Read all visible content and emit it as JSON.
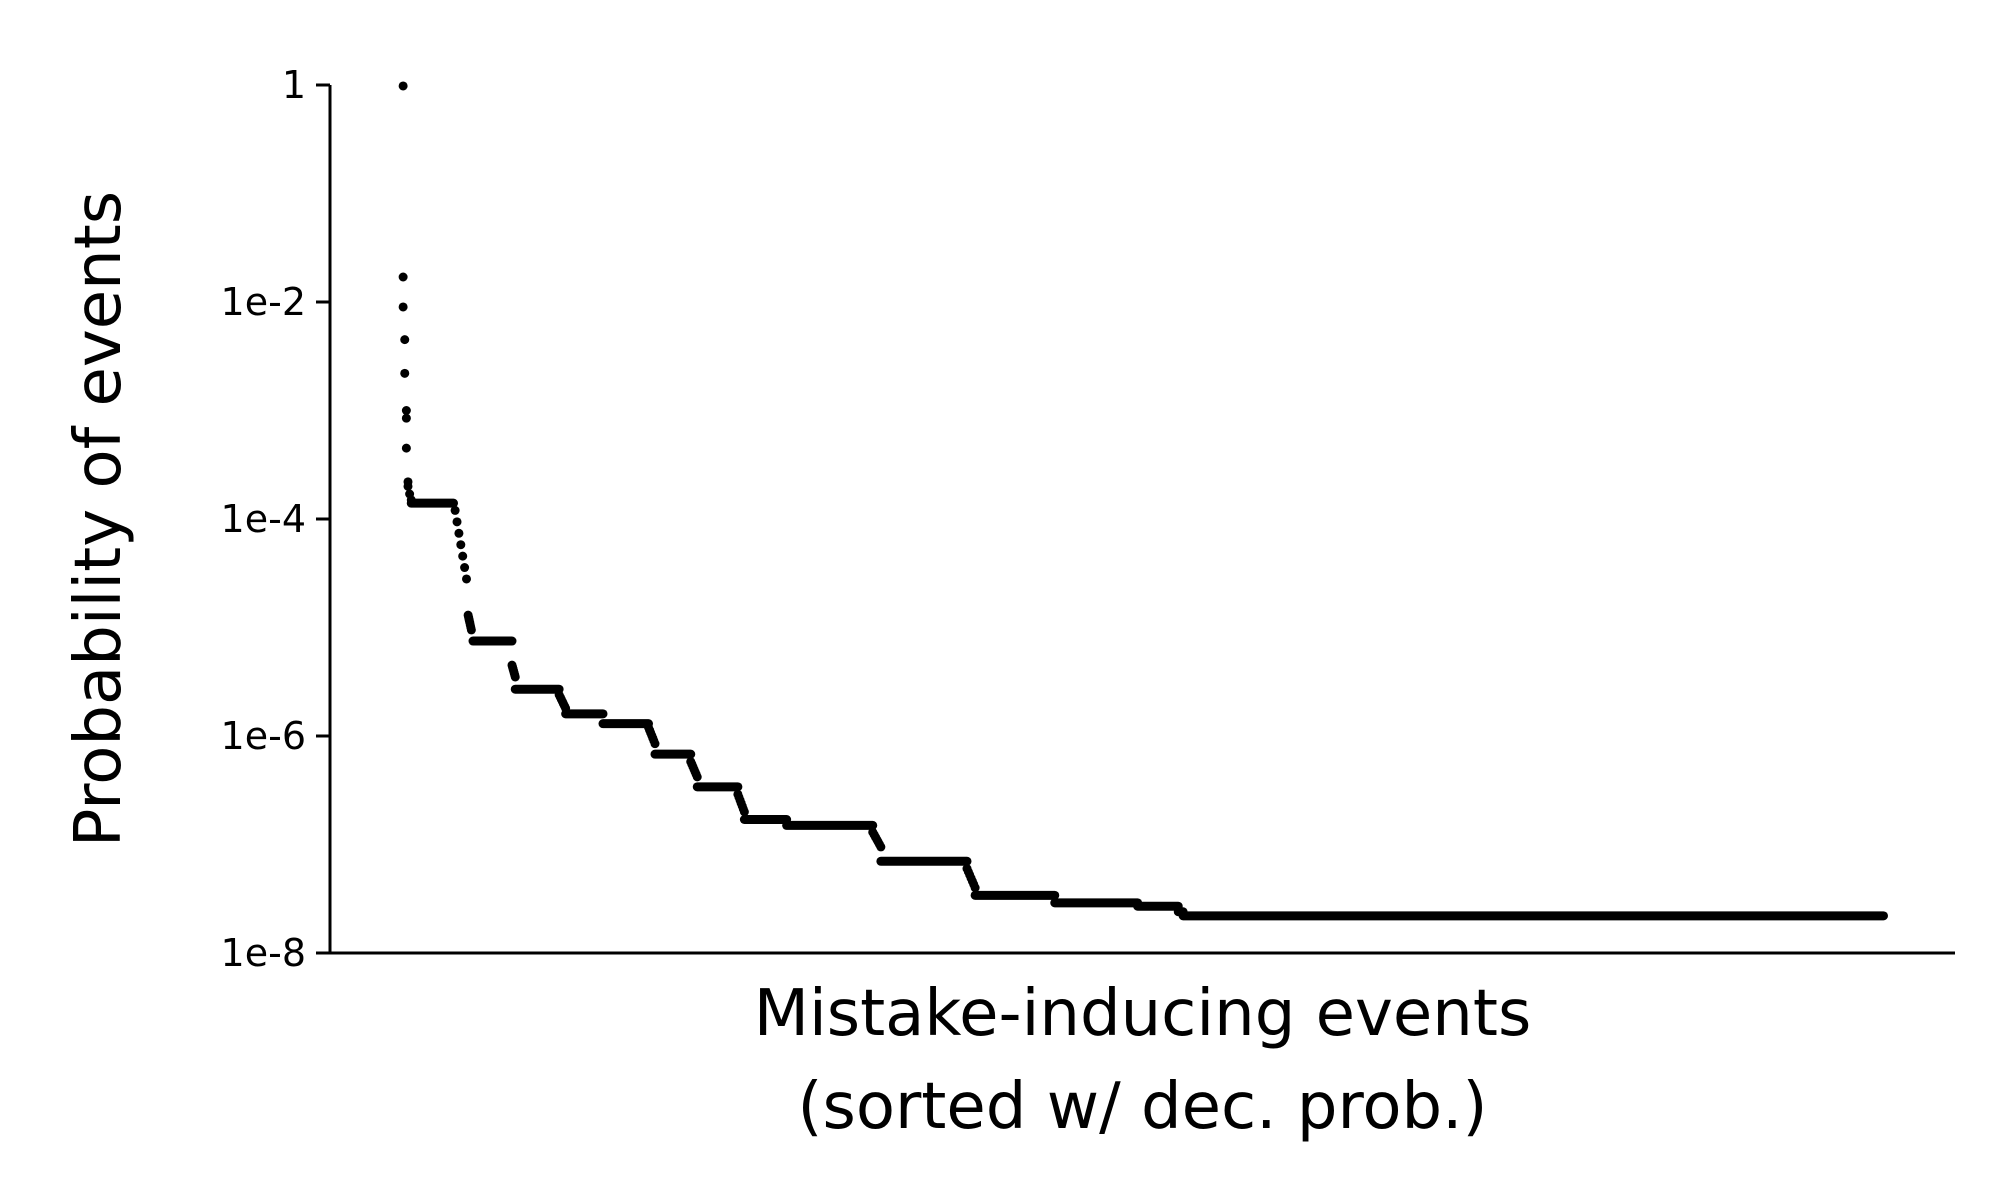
{
  "chart_data": {
    "type": "scatter",
    "title": "",
    "ylabel": "Probability of events",
    "xlabel_lines": [
      "Mistake-inducing events",
      "(sorted w/ dec. prob.)"
    ],
    "y_scale": "log",
    "ylim": [
      1e-08,
      1
    ],
    "xlim": [
      0,
      1000
    ],
    "x_ticks_shown": false,
    "y_ticks": [
      {
        "value": 1,
        "label": "1"
      },
      {
        "value": 0.01,
        "label": "1e-2"
      },
      {
        "value": 0.0001,
        "label": "1e-4"
      },
      {
        "value": 1e-06,
        "label": "1e-6"
      },
      {
        "value": 1e-08,
        "label": "1e-8"
      }
    ],
    "grid": false,
    "legend": "none",
    "marker_color": "#000000",
    "series": [
      {
        "points": [
          [
            45,
            0.98
          ],
          [
            45,
            0.017
          ],
          [
            45,
            0.009
          ],
          [
            46,
            0.0045
          ],
          [
            46,
            0.0022
          ],
          [
            47,
            0.001
          ],
          [
            47,
            0.00085
          ],
          [
            47,
            0.00045
          ],
          [
            48,
            0.00022
          ],
          [
            48,
            0.0002
          ],
          [
            49,
            0.00017
          ],
          [
            50,
            0.00015
          ]
        ]
      },
      {
        "segments": [
          {
            "x0": 50,
            "x1": 76,
            "y": 0.00014
          },
          {
            "x0": 77,
            "x1": 84,
            "y_from": 0.00012,
            "y_to": 2.8e-05
          },
          {
            "x0": 85,
            "x1": 87,
            "y_from": 1.3e-05,
            "y_to": 9.5e-06
          },
          {
            "x0": 88,
            "x1": 112,
            "y": 7.5e-06
          },
          {
            "x0": 112,
            "x1": 114,
            "y_from": 4.5e-06,
            "y_to": 3.5e-06
          },
          {
            "x0": 114,
            "x1": 141,
            "y": 2.7e-06
          },
          {
            "x0": 141,
            "x1": 145,
            "y_from": 2.4e-06,
            "y_to": 1.8e-06
          },
          {
            "x0": 145,
            "x1": 168,
            "y": 1.6e-06
          },
          {
            "x0": 168,
            "x1": 196,
            "y": 1.3e-06
          },
          {
            "x0": 196,
            "x1": 200,
            "y_from": 1.2e-06,
            "y_to": 8.5e-07
          },
          {
            "x0": 200,
            "x1": 222,
            "y": 6.8e-07
          },
          {
            "x0": 222,
            "x1": 226,
            "y_from": 5.8e-07,
            "y_to": 4.2e-07
          },
          {
            "x0": 226,
            "x1": 251,
            "y": 3.4e-07
          },
          {
            "x0": 251,
            "x1": 255,
            "y_from": 2.9e-07,
            "y_to": 2e-07
          },
          {
            "x0": 255,
            "x1": 281,
            "y": 1.7e-07
          },
          {
            "x0": 281,
            "x1": 334,
            "y": 1.5e-07
          },
          {
            "x0": 334,
            "x1": 339,
            "y_from": 1.3e-07,
            "y_to": 9.5e-08
          },
          {
            "x0": 339,
            "x1": 392,
            "y": 7e-08
          },
          {
            "x0": 392,
            "x1": 397,
            "y_from": 6e-08,
            "y_to": 4e-08
          },
          {
            "x0": 397,
            "x1": 446,
            "y": 3.4e-08
          },
          {
            "x0": 446,
            "x1": 497,
            "y": 2.9e-08
          },
          {
            "x0": 497,
            "x1": 522,
            "y": 2.7e-08
          },
          {
            "x0": 522,
            "x1": 525,
            "y": 2.4e-08
          },
          {
            "x0": 525,
            "x1": 956,
            "y": 2.2e-08
          }
        ]
      }
    ]
  }
}
